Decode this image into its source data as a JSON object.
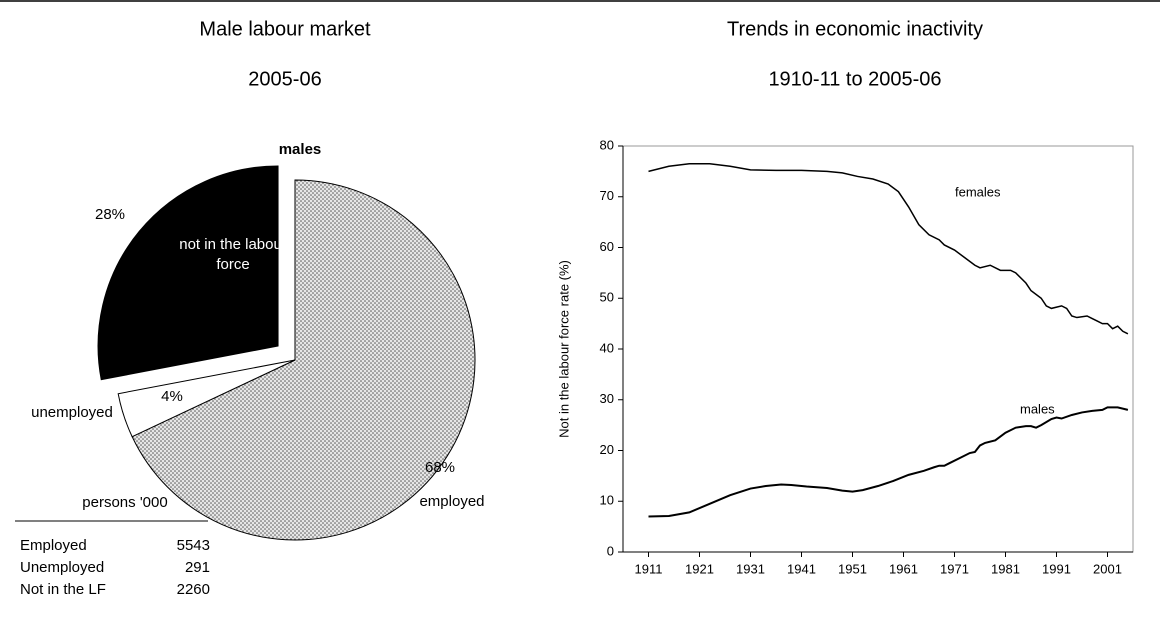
{
  "chart_data": [
    {
      "type": "pie",
      "title": "Male labour market",
      "subtitle": "2005-06",
      "label": "males",
      "categories": [
        "employed",
        "unemployed",
        "not in the labour force"
      ],
      "values": [
        68,
        4,
        28
      ],
      "value_labels": [
        "68%",
        "4%",
        "28%"
      ],
      "colors": [
        "#d9d9d9",
        "#ffffff",
        "#000000"
      ],
      "exploded": [
        false,
        false,
        true
      ]
    },
    {
      "type": "line",
      "title": "Trends in economic inactivity",
      "subtitle": "1910-11 to 2005-06",
      "y_label": "Not in the labour force rate (%)",
      "xlim": [
        1906,
        2006
      ],
      "xticks": [
        1911,
        1921,
        1931,
        1941,
        1951,
        1961,
        1971,
        1981,
        1991,
        2001
      ],
      "ylim": [
        0,
        80
      ],
      "yticks": [
        0,
        10,
        20,
        30,
        40,
        50,
        60,
        70,
        80
      ],
      "series": [
        {
          "name": "females",
          "color": "#000000",
          "x": [
            1911,
            1915,
            1919,
            1923,
            1927,
            1931,
            1936,
            1941,
            1946,
            1949,
            1952,
            1955,
            1958,
            1960,
            1962,
            1964,
            1966,
            1968,
            1969,
            1971,
            1973,
            1975,
            1976,
            1978,
            1980,
            1982,
            1983,
            1985,
            1986,
            1988,
            1989,
            1990,
            1992,
            1993,
            1994,
            1995,
            1997,
            1998,
            1999,
            2000,
            2001,
            2002,
            2003,
            2004,
            2005
          ],
          "values": [
            75,
            76,
            76.5,
            76.5,
            76,
            75.3,
            75.2,
            75.2,
            75,
            74.7,
            74,
            73.5,
            72.5,
            71,
            68,
            64.5,
            62.5,
            61.5,
            60.5,
            59.5,
            58,
            56.5,
            56,
            56.5,
            55.5,
            55.5,
            55,
            53,
            51.5,
            50,
            48.5,
            48,
            48.5,
            48,
            46.5,
            46.2,
            46.5,
            46,
            45.5,
            45,
            45,
            44,
            44.5,
            43.5,
            43
          ]
        },
        {
          "name": "males",
          "color": "#000000",
          "x": [
            1911,
            1915,
            1919,
            1923,
            1927,
            1931,
            1934,
            1937,
            1939,
            1942,
            1946,
            1949,
            1951,
            1953,
            1956,
            1959,
            1962,
            1965,
            1967,
            1968,
            1969,
            1970,
            1972,
            1974,
            1975,
            1976,
            1977,
            1979,
            1981,
            1983,
            1985,
            1986,
            1987,
            1988,
            1990,
            1991,
            1992,
            1994,
            1996,
            1998,
            2000,
            2001,
            2003,
            2005
          ],
          "values": [
            7,
            7.1,
            7.8,
            9.5,
            11.2,
            12.5,
            13,
            13.3,
            13.2,
            12.9,
            12.6,
            12.1,
            11.9,
            12.2,
            13,
            14,
            15.2,
            16,
            16.7,
            17,
            17,
            17.5,
            18.5,
            19.5,
            19.7,
            21,
            21.5,
            22,
            23.5,
            24.5,
            24.8,
            24.8,
            24.5,
            25,
            26.2,
            26.5,
            26.3,
            27,
            27.5,
            27.8,
            28,
            28.5,
            28.5,
            28
          ]
        }
      ]
    }
  ],
  "table": {
    "header": "persons '000",
    "rows": [
      [
        "Employed",
        "5543"
      ],
      [
        "Unemployed",
        "291"
      ],
      [
        "Not in the LF",
        "2260"
      ]
    ]
  }
}
